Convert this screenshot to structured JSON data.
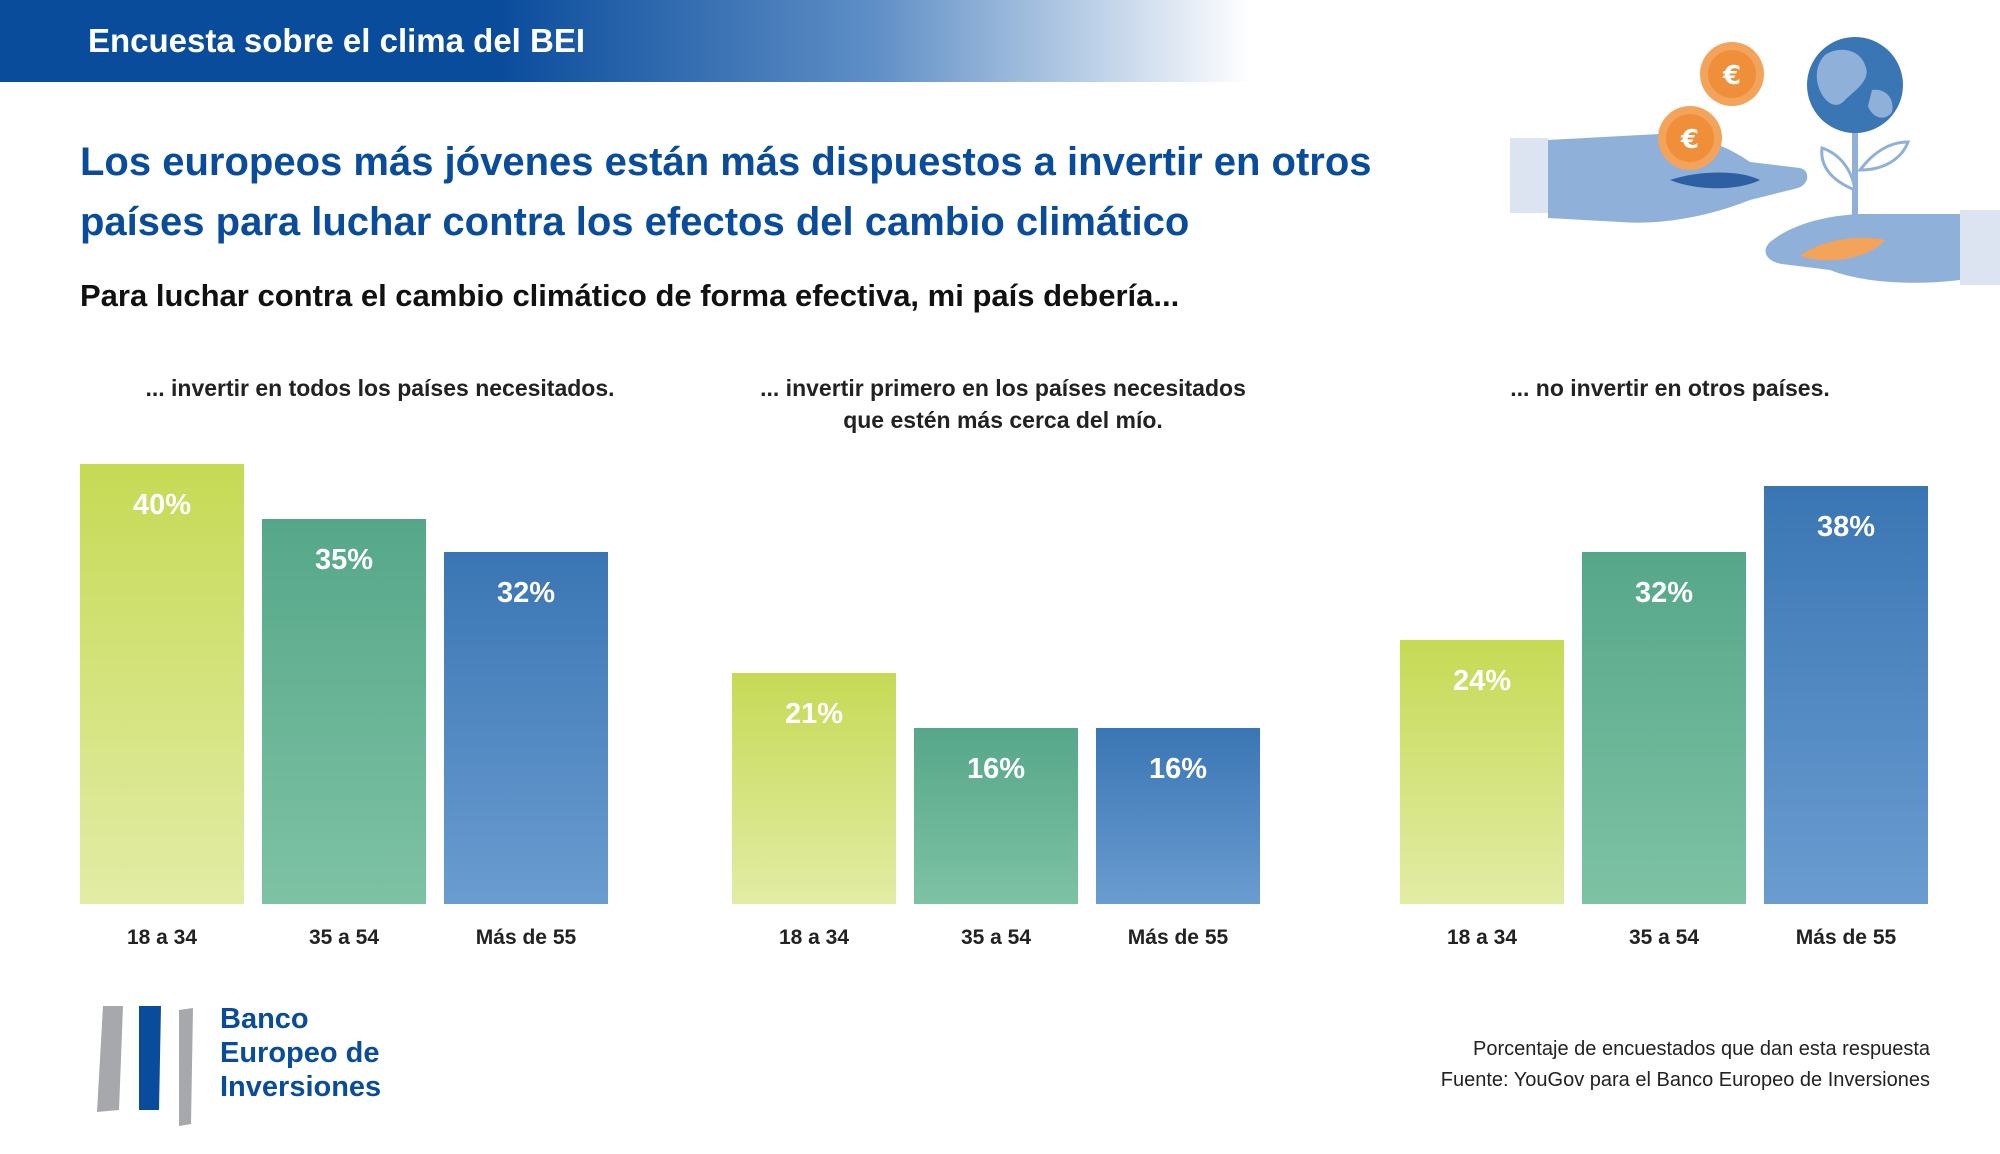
{
  "header": {
    "banner_title": "Encuesta sobre el clima del BEI",
    "headline_line1": "Los europeos más jóvenes están más dispuestos a invertir en otros",
    "headline_line2": "países para luchar contra los efectos del cambio climático",
    "subtitle": "Para luchar contra el cambio climático de forma efectiva, mi país debería..."
  },
  "colors": {
    "brand": "#0a4c9c",
    "young": "#c6da55",
    "middle": "#56a78a",
    "older": "#3a76b4"
  },
  "chart_data": [
    {
      "type": "bar",
      "title_line1": "... invertir en todos los países necesitados.",
      "title_line2": "",
      "categories": [
        "18 a 34",
        "35 a 54",
        "Más de 55"
      ],
      "values": [
        40,
        35,
        32
      ],
      "labels": [
        "40%",
        "35%",
        "32%"
      ],
      "ylim": [
        0,
        40
      ]
    },
    {
      "type": "bar",
      "title_line1": "... invertir primero en los países necesitados",
      "title_line2": "que estén más cerca del mío.",
      "categories": [
        "18 a 34",
        "35 a 54",
        "Más de 55"
      ],
      "values": [
        21,
        16,
        16
      ],
      "labels": [
        "21%",
        "16%",
        "16%"
      ],
      "ylim": [
        0,
        40
      ]
    },
    {
      "type": "bar",
      "title_line1": "... no invertir en otros países.",
      "title_line2": "",
      "categories": [
        "18 a 34",
        "35 a 54",
        "Más de 55"
      ],
      "values": [
        24,
        32,
        38
      ],
      "labels": [
        "24%",
        "32%",
        "38%"
      ],
      "ylim": [
        0,
        40
      ]
    }
  ],
  "logo": {
    "line1": "Banco",
    "line2": "Europeo de",
    "line3": "Inversiones"
  },
  "footer": {
    "note": "Porcentaje de encuestados que dan esta respuesta",
    "source": "Fuente: YouGov para el Banco Europeo de Inversiones"
  }
}
